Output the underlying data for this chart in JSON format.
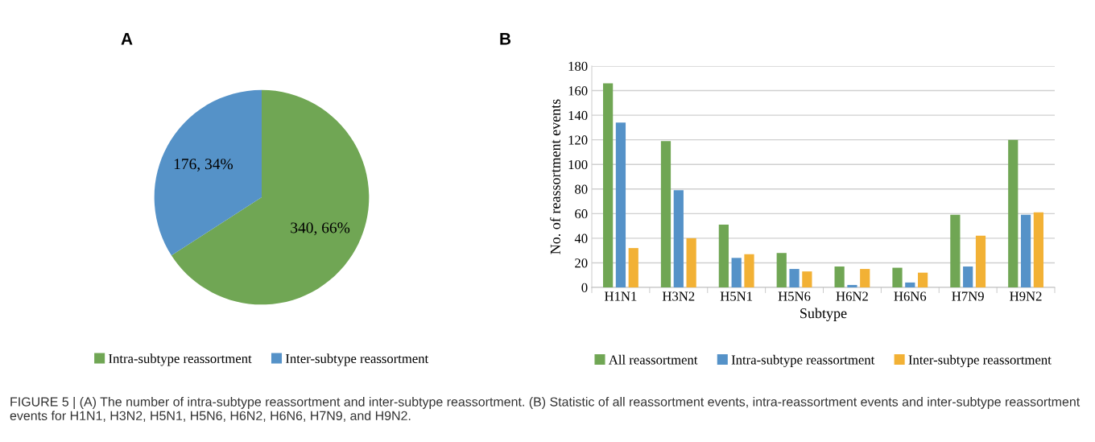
{
  "chart_data": [
    {
      "type": "pie",
      "title": "A",
      "categories": [
        "Intra-subtype reassortment",
        "Inter-subtype reassortment"
      ],
      "values": [
        340,
        176
      ],
      "colors": [
        "#70a654",
        "#5592c8"
      ],
      "value_labels": [
        "340, 66%",
        "176, 34%"
      ],
      "legend": "bottom",
      "annotations": [
        "FIGURE 5 | (A) The number of intra-subtype reassortment and inter-subtype reassortment. (B) Statistic of all reassortment events, intra-reassortment events and inter-subtype reassortment events for H1N1, H3N2, H5N1, H5N6, H6N2, H6N6, H7N9, and H9N2."
      ]
    },
    {
      "type": "bar",
      "title": "B",
      "xlabel": "Subtype",
      "ylabel": "No. of reassortment events",
      "categories": [
        "H1N1",
        "H3N2",
        "H5N1",
        "H5N6",
        "H6N2",
        "H6N6",
        "H7N9",
        "H9N2"
      ],
      "series": [
        {
          "name": "All reassortment",
          "color": "#70a654",
          "values": [
            166,
            119,
            51,
            28,
            17,
            16,
            59,
            120
          ]
        },
        {
          "name": "Intra-subtype reassortment",
          "color": "#5592c8",
          "values": [
            134,
            79,
            24,
            15,
            2,
            4,
            17,
            59
          ]
        },
        {
          "name": "Inter-subtype reassortment",
          "color": "#f2b135",
          "values": [
            32,
            40,
            27,
            13,
            15,
            12,
            42,
            61
          ]
        }
      ],
      "ylim": [
        0,
        180
      ],
      "yticks": [
        0,
        20,
        40,
        60,
        80,
        100,
        120,
        140,
        160,
        180
      ],
      "grid": "y",
      "legend": "bottom"
    }
  ]
}
